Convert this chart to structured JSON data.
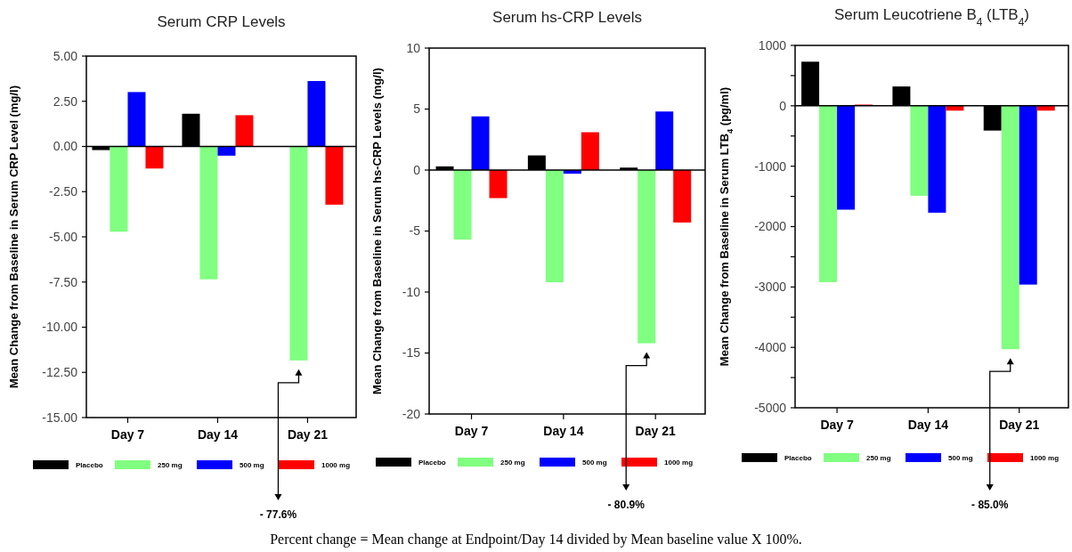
{
  "chart_data": [
    {
      "type": "bar",
      "title": "Serum CRP Levels",
      "ylabel": "Mean Change from Baseline in Serum CRP Level (mg/l)",
      "categories": [
        "Day 7",
        "Day 14",
        "Day 21"
      ],
      "series": [
        {
          "name": "Placebo",
          "color": "#000000",
          "values": [
            -0.2,
            1.81,
            0
          ]
        },
        {
          "name": "250 mg",
          "color": "#80ff80",
          "values": [
            -4.72,
            -7.35,
            -11.84
          ]
        },
        {
          "name": "500 mg",
          "color": "#0000ff",
          "values": [
            3.01,
            -0.51,
            3.62
          ]
        },
        {
          "name": "1000 mg",
          "color": "#ff0000",
          "values": [
            -1.22,
            1.73,
            -3.22
          ]
        }
      ],
      "ylim": [
        -15,
        5
      ],
      "yticks": [
        {
          "value": 5,
          "label": "5.00"
        },
        {
          "value": 2.5,
          "label": "2.50"
        },
        {
          "value": 0,
          "label": "0.00"
        },
        {
          "value": -2.5,
          "label": "-2.50"
        },
        {
          "value": -5,
          "label": "-5.00"
        },
        {
          "value": -7.5,
          "label": "-7.50"
        },
        {
          "value": -10,
          "label": "-10.00"
        },
        {
          "value": -12.5,
          "label": "-12.50"
        },
        {
          "value": -15,
          "label": "-15.00"
        }
      ],
      "legend": "bottom",
      "annotations": [
        "- 77.6%",
        "Percent change = Mean change at Endpoint/Day 14 divided by Mean baseline value X 100%."
      ]
    },
    {
      "type": "bar",
      "title": "Serum hs-CRP Levels",
      "ylabel": "Mean Change from Baseline in Serum hs-CRP Levels (mg/l)",
      "categories": [
        "Day 7",
        "Day 14",
        "Day 21"
      ],
      "series": [
        {
          "name": "Placebo",
          "color": "#000000",
          "values": [
            0.3,
            1.2,
            0.2
          ]
        },
        {
          "name": "250 mg",
          "color": "#80ff80",
          "values": [
            -5.7,
            -9.2,
            -14.2
          ]
        },
        {
          "name": "500 mg",
          "color": "#0000ff",
          "values": [
            4.4,
            -0.3,
            4.8
          ]
        },
        {
          "name": "1000 mg",
          "color": "#ff0000",
          "values": [
            -2.3,
            3.1,
            -4.3
          ]
        }
      ],
      "ylim": [
        -20,
        10
      ],
      "yticks": [
        10,
        5,
        0,
        -5,
        -10,
        -15,
        -20
      ],
      "legend": "bottom",
      "annotations": [
        "- 80.9%"
      ]
    },
    {
      "type": "bar",
      "title": "Serum Leucotriene B$_{4}$ (LTB$_{4}$)",
      "ylabel": "Mean Change from Baseline in Serum LTB$_{4}$ (pg/ml)",
      "categories": [
        "Day 7",
        "Day 14",
        "Day 21"
      ],
      "series": [
        {
          "name": "Placebo",
          "color": "#000000",
          "values": [
            730,
            320,
            -410
          ]
        },
        {
          "name": "250 mg",
          "color": "#80ff80",
          "values": [
            -2920,
            -1490,
            -4030
          ]
        },
        {
          "name": "500 mg",
          "color": "#0000ff",
          "values": [
            -1720,
            -1770,
            -2960
          ]
        },
        {
          "name": "1000 mg",
          "color": "#ff0000",
          "values": [
            20,
            -80,
            -80
          ]
        }
      ],
      "ylim": [
        -5000,
        1000
      ],
      "yticks": [
        1000,
        {
          "value": 500,
          "label": null
        },
        0,
        {
          "value": -500,
          "label": null
        },
        -1000,
        {
          "value": -1500,
          "label": null
        },
        -2000,
        {
          "value": -2500,
          "label": null
        },
        -3000,
        {
          "value": -3500,
          "label": null
        },
        -4000,
        {
          "value": -4500,
          "label": null
        },
        -5000
      ],
      "legend": "bottom",
      "annotations": [
        "- 85.0%"
      ]
    }
  ]
}
